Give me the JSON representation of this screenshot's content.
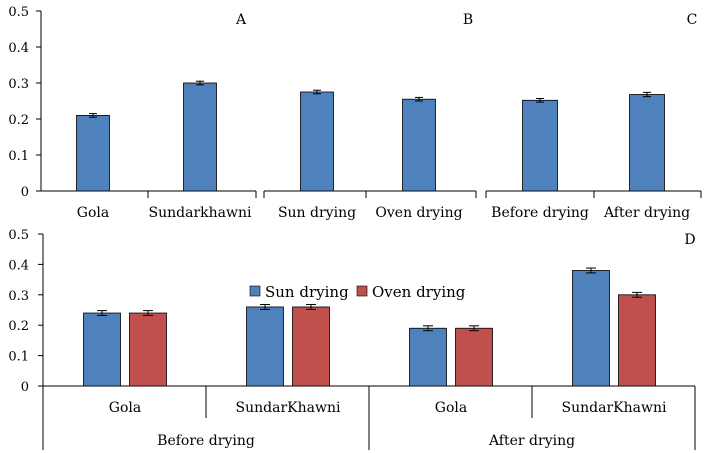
{
  "chart_data": [
    {
      "type": "bar",
      "panel": "A",
      "categories": [
        "Gola",
        "Sundarkhawni"
      ],
      "values": [
        0.21,
        0.3
      ],
      "errors": [
        0.005,
        0.005
      ],
      "ylim": [
        0,
        0.5
      ],
      "yticks": [
        "0",
        "0.1",
        "0.2",
        "0.3",
        "0.4",
        "0.5"
      ],
      "color": "#4F81BD"
    },
    {
      "type": "bar",
      "panel": "B",
      "categories": [
        "Sun drying",
        "Oven drying"
      ],
      "values": [
        0.275,
        0.255
      ],
      "errors": [
        0.005,
        0.005
      ],
      "ylim": [
        0,
        0.5
      ],
      "color": "#4F81BD"
    },
    {
      "type": "bar",
      "panel": "C",
      "categories": [
        "Before drying",
        "After drying"
      ],
      "values": [
        0.252,
        0.268
      ],
      "errors": [
        0.005,
        0.006
      ],
      "ylim": [
        0,
        0.5
      ],
      "color": "#4F81BD"
    },
    {
      "type": "bar",
      "panel": "D",
      "categories": [
        "Gola",
        "SundarKhawni",
        "Gola",
        "SundarKhawni"
      ],
      "groups": [
        "Before drying",
        "After drying"
      ],
      "series": [
        {
          "name": "Sun drying",
          "values": [
            0.24,
            0.26,
            0.19,
            0.38
          ],
          "errors": [
            0.008,
            0.008,
            0.008,
            0.008
          ],
          "color": "#4F81BD"
        },
        {
          "name": "Oven drying",
          "values": [
            0.24,
            0.26,
            0.19,
            0.3
          ],
          "errors": [
            0.008,
            0.008,
            0.008,
            0.008
          ],
          "color": "#C0504D"
        }
      ],
      "ylim": [
        0,
        0.5
      ],
      "yticks": [
        "0",
        "0.1",
        "0.2",
        "0.3",
        "0.4",
        "0.5"
      ],
      "legend": "top-center"
    }
  ]
}
